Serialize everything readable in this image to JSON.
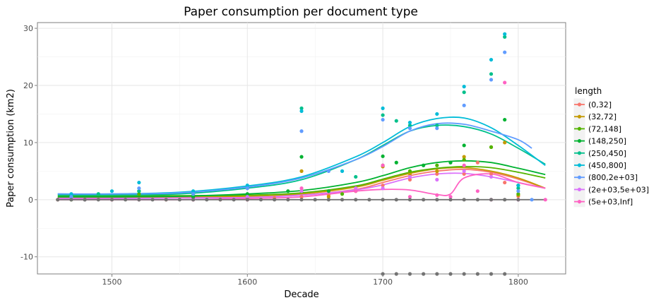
{
  "chart_data": {
    "type": "scatter",
    "title": "Paper consumption per document type",
    "xlabel": "Decade",
    "ylabel": "Paper consumption (km2)",
    "xlim": [
      1445,
      1835
    ],
    "ylim": [
      -13,
      31
    ],
    "xticks": [
      1500,
      1600,
      1700,
      1800
    ],
    "yticks": [
      -10,
      0,
      10,
      20,
      30
    ],
    "grid": true,
    "legend_title": "length",
    "legend_position": "right",
    "smoothed_lines": true,
    "series": [
      {
        "name": "(0,32]",
        "color": "#F8766D",
        "points": [
          [
            1460,
            0
          ],
          [
            1500,
            0
          ],
          [
            1540,
            0
          ],
          [
            1580,
            0
          ],
          [
            1600,
            0
          ],
          [
            1620,
            0.3
          ],
          [
            1640,
            0.5
          ],
          [
            1660,
            0.8
          ],
          [
            1680,
            1.5
          ],
          [
            1700,
            2.5
          ],
          [
            1720,
            3.5
          ],
          [
            1740,
            4.5
          ],
          [
            1760,
            4.5
          ],
          [
            1770,
            6.5
          ],
          [
            1780,
            4.5
          ],
          [
            1790,
            3
          ],
          [
            1800,
            0.6
          ]
        ],
        "smooth": [
          [
            1460,
            0.3
          ],
          [
            1500,
            0.3
          ],
          [
            1550,
            0.4
          ],
          [
            1600,
            0.5
          ],
          [
            1640,
            0.8
          ],
          [
            1680,
            1.8
          ],
          [
            1700,
            3
          ],
          [
            1720,
            4.2
          ],
          [
            1740,
            5
          ],
          [
            1760,
            5.3
          ],
          [
            1780,
            4.8
          ],
          [
            1800,
            3.6
          ],
          [
            1820,
            2
          ]
        ]
      },
      {
        "name": "(32,72]",
        "color": "#C49A00",
        "points": [
          [
            1480,
            0
          ],
          [
            1520,
            0
          ],
          [
            1560,
            0
          ],
          [
            1600,
            0.2
          ],
          [
            1640,
            5
          ],
          [
            1660,
            0.5
          ],
          [
            1680,
            1.5
          ],
          [
            1700,
            5.8
          ],
          [
            1720,
            4.5
          ],
          [
            1740,
            5
          ],
          [
            1760,
            7.5
          ],
          [
            1780,
            9.2
          ],
          [
            1790,
            10
          ],
          [
            1800,
            0.8
          ]
        ],
        "smooth": [
          [
            1460,
            0.5
          ],
          [
            1500,
            0.5
          ],
          [
            1550,
            0.5
          ],
          [
            1600,
            0.6
          ],
          [
            1640,
            1
          ],
          [
            1680,
            2.2
          ],
          [
            1700,
            3.4
          ],
          [
            1720,
            4.6
          ],
          [
            1740,
            5.4
          ],
          [
            1760,
            5.6
          ],
          [
            1780,
            5
          ],
          [
            1800,
            3.8
          ],
          [
            1820,
            2
          ]
        ]
      },
      {
        "name": "(72,148]",
        "color": "#53B400",
        "points": [
          [
            1470,
            0
          ],
          [
            1520,
            1
          ],
          [
            1560,
            0.5
          ],
          [
            1600,
            0.5
          ],
          [
            1640,
            1.5
          ],
          [
            1670,
            1
          ],
          [
            1700,
            6
          ],
          [
            1720,
            5
          ],
          [
            1740,
            6
          ],
          [
            1760,
            7
          ],
          [
            1780,
            9.2
          ],
          [
            1800,
            1
          ]
        ],
        "smooth": [
          [
            1460,
            0.7
          ],
          [
            1500,
            0.7
          ],
          [
            1550,
            0.7
          ],
          [
            1600,
            0.8
          ],
          [
            1640,
            1.2
          ],
          [
            1680,
            2.4
          ],
          [
            1700,
            3.6
          ],
          [
            1720,
            4.8
          ],
          [
            1740,
            5.5
          ],
          [
            1760,
            5.8
          ],
          [
            1780,
            5.6
          ],
          [
            1800,
            4.8
          ],
          [
            1820,
            3.8
          ]
        ]
      },
      {
        "name": "(148,250]",
        "color": "#00B231",
        "points": [
          [
            1480,
            0
          ],
          [
            1520,
            1.5
          ],
          [
            1560,
            0.5
          ],
          [
            1600,
            1
          ],
          [
            1630,
            1.5
          ],
          [
            1640,
            7.5
          ],
          [
            1660,
            1.5
          ],
          [
            1700,
            7.6
          ],
          [
            1710,
            6.5
          ],
          [
            1730,
            6
          ],
          [
            1750,
            6.5
          ],
          [
            1760,
            9.5
          ],
          [
            1790,
            14
          ],
          [
            1800,
            2.5
          ]
        ],
        "smooth": [
          [
            1460,
            0.5
          ],
          [
            1500,
            0.5
          ],
          [
            1550,
            0.6
          ],
          [
            1600,
            1
          ],
          [
            1640,
            1.6
          ],
          [
            1680,
            3
          ],
          [
            1700,
            4.2
          ],
          [
            1720,
            5.6
          ],
          [
            1740,
            6.5
          ],
          [
            1760,
            6.8
          ],
          [
            1780,
            6.5
          ],
          [
            1800,
            5.5
          ],
          [
            1820,
            4.4
          ]
        ]
      },
      {
        "name": "(250,450]",
        "color": "#00C08B",
        "points": [
          [
            1490,
            1
          ],
          [
            1520,
            1.5
          ],
          [
            1560,
            1
          ],
          [
            1600,
            2
          ],
          [
            1640,
            16
          ],
          [
            1680,
            4
          ],
          [
            1700,
            14.8
          ],
          [
            1710,
            13.8
          ],
          [
            1720,
            13
          ],
          [
            1740,
            13
          ],
          [
            1760,
            18.8
          ],
          [
            1780,
            22
          ],
          [
            1790,
            28.5
          ],
          [
            1800,
            2
          ]
        ],
        "smooth": [
          [
            1460,
            0.8
          ],
          [
            1500,
            0.8
          ],
          [
            1550,
            1
          ],
          [
            1600,
            2
          ],
          [
            1640,
            3.5
          ],
          [
            1680,
            7
          ],
          [
            1700,
            9.5
          ],
          [
            1720,
            12
          ],
          [
            1740,
            13
          ],
          [
            1760,
            12.8
          ],
          [
            1780,
            11.5
          ],
          [
            1800,
            9
          ],
          [
            1820,
            6.2
          ]
        ]
      },
      {
        "name": "(450,800]",
        "color": "#00BCD8",
        "points": [
          [
            1470,
            1
          ],
          [
            1500,
            1.5
          ],
          [
            1520,
            3
          ],
          [
            1560,
            1.5
          ],
          [
            1600,
            2.5
          ],
          [
            1640,
            15.5
          ],
          [
            1670,
            5
          ],
          [
            1700,
            16
          ],
          [
            1720,
            13.5
          ],
          [
            1740,
            15
          ],
          [
            1760,
            19.8
          ],
          [
            1780,
            24.5
          ],
          [
            1790,
            29
          ],
          [
            1800,
            2.5
          ]
        ],
        "smooth": [
          [
            1460,
            1
          ],
          [
            1500,
            1
          ],
          [
            1550,
            1.3
          ],
          [
            1600,
            2.4
          ],
          [
            1640,
            4
          ],
          [
            1680,
            7.5
          ],
          [
            1700,
            10
          ],
          [
            1720,
            12.8
          ],
          [
            1740,
            14.2
          ],
          [
            1760,
            14.3
          ],
          [
            1780,
            12.6
          ],
          [
            1800,
            9.5
          ],
          [
            1820,
            6
          ]
        ]
      },
      {
        "name": "(800,2e+03]",
        "color": "#619CFF",
        "points": [
          [
            1470,
            0.5
          ],
          [
            1520,
            2
          ],
          [
            1560,
            1
          ],
          [
            1600,
            2
          ],
          [
            1640,
            12
          ],
          [
            1660,
            5
          ],
          [
            1700,
            14
          ],
          [
            1720,
            12.5
          ],
          [
            1740,
            12.5
          ],
          [
            1760,
            16.5
          ],
          [
            1780,
            21
          ],
          [
            1790,
            25.8
          ],
          [
            1800,
            1.5
          ],
          [
            1810,
            0
          ]
        ],
        "smooth": [
          [
            1460,
            1
          ],
          [
            1500,
            1
          ],
          [
            1550,
            1.2
          ],
          [
            1600,
            2.2
          ],
          [
            1640,
            3.8
          ],
          [
            1680,
            7
          ],
          [
            1700,
            9.3
          ],
          [
            1720,
            12
          ],
          [
            1740,
            13.3
          ],
          [
            1760,
            13.2
          ],
          [
            1780,
            12
          ],
          [
            1800,
            10.5
          ],
          [
            1810,
            9
          ]
        ]
      },
      {
        "name": "(2e+03,5e+03]",
        "color": "#DB72FB",
        "points": [
          [
            1480,
            0
          ],
          [
            1520,
            0
          ],
          [
            1560,
            0
          ],
          [
            1600,
            0.5
          ],
          [
            1640,
            1.5
          ],
          [
            1680,
            2
          ],
          [
            1700,
            2
          ],
          [
            1720,
            4
          ],
          [
            1740,
            3.5
          ],
          [
            1760,
            5
          ],
          [
            1780,
            4
          ],
          [
            1800,
            0
          ]
        ],
        "smooth": [
          [
            1460,
            0.2
          ],
          [
            1500,
            0.2
          ],
          [
            1550,
            0.3
          ],
          [
            1600,
            0.4
          ],
          [
            1640,
            0.8
          ],
          [
            1680,
            1.7
          ],
          [
            1700,
            2.6
          ],
          [
            1720,
            3.8
          ],
          [
            1740,
            4.5
          ],
          [
            1760,
            4.6
          ],
          [
            1780,
            4
          ],
          [
            1800,
            3
          ],
          [
            1820,
            2
          ]
        ]
      },
      {
        "name": "(5e+03,Inf]",
        "color": "#FF61C3",
        "points": [
          [
            1500,
            0
          ],
          [
            1560,
            0
          ],
          [
            1600,
            0
          ],
          [
            1640,
            2
          ],
          [
            1680,
            1.5
          ],
          [
            1700,
            6
          ],
          [
            1720,
            0.5
          ],
          [
            1740,
            0.8
          ],
          [
            1750,
            0.5
          ],
          [
            1760,
            6
          ],
          [
            1770,
            1.5
          ],
          [
            1780,
            0
          ],
          [
            1790,
            20.5
          ],
          [
            1800,
            0
          ],
          [
            1820,
            0
          ]
        ],
        "smooth": [
          [
            1460,
            0
          ],
          [
            1500,
            0
          ],
          [
            1550,
            0
          ],
          [
            1600,
            0.2
          ],
          [
            1640,
            0.5
          ],
          [
            1680,
            1.5
          ],
          [
            1700,
            1.8
          ],
          [
            1720,
            1.7
          ],
          [
            1740,
            0.9
          ],
          [
            1750,
            1
          ],
          [
            1760,
            3.8
          ],
          [
            1780,
            4.5
          ],
          [
            1800,
            3
          ],
          [
            1820,
            2
          ]
        ]
      },
      {
        "name": "",
        "color": "#737373",
        "points": [
          [
            1460,
            0
          ],
          [
            1470,
            0
          ],
          [
            1480,
            0
          ],
          [
            1490,
            0
          ],
          [
            1500,
            0
          ],
          [
            1510,
            0
          ],
          [
            1520,
            0
          ],
          [
            1530,
            0
          ],
          [
            1540,
            0
          ],
          [
            1550,
            0
          ],
          [
            1560,
            0
          ],
          [
            1570,
            0
          ],
          [
            1580,
            0
          ],
          [
            1590,
            0
          ],
          [
            1600,
            0
          ],
          [
            1610,
            0
          ],
          [
            1620,
            0
          ],
          [
            1630,
            0
          ],
          [
            1640,
            0
          ],
          [
            1650,
            0
          ],
          [
            1660,
            0
          ],
          [
            1670,
            0
          ],
          [
            1680,
            0
          ],
          [
            1690,
            0
          ],
          [
            1700,
            0
          ],
          [
            1710,
            0
          ],
          [
            1720,
            0
          ],
          [
            1730,
            0
          ],
          [
            1740,
            0
          ],
          [
            1750,
            0
          ],
          [
            1760,
            0
          ],
          [
            1770,
            0
          ],
          [
            1780,
            0
          ],
          [
            1790,
            0
          ],
          [
            1800,
            0
          ],
          [
            1700,
            -13
          ],
          [
            1710,
            -13
          ],
          [
            1720,
            -13
          ],
          [
            1730,
            -13
          ],
          [
            1740,
            -13
          ],
          [
            1750,
            -13
          ],
          [
            1760,
            -13
          ],
          [
            1770,
            -13
          ],
          [
            1780,
            -13
          ],
          [
            1790,
            -13
          ]
        ],
        "smooth": [
          [
            1460,
            0
          ],
          [
            1820,
            0
          ]
        ]
      }
    ]
  }
}
